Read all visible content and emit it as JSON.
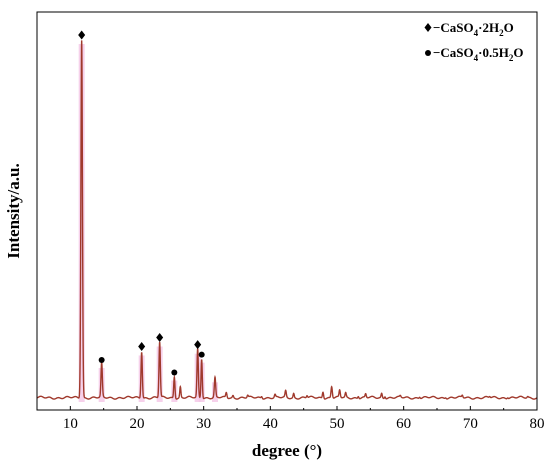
{
  "chart_data": {
    "type": "line",
    "xlabel": "degree (°)",
    "ylabel": "Intensity/a.u.",
    "xlim": [
      5,
      80
    ],
    "ylim": [
      0,
      1.0
    ],
    "x_ticks": [
      10,
      20,
      30,
      40,
      50,
      60,
      70,
      80
    ],
    "y_ticks_shown": false,
    "grid": false,
    "legend_position": "top-right",
    "colors": {
      "line": "#a0392c",
      "shade": "#f4c6e6",
      "axis": "#000000"
    },
    "legend": [
      {
        "marker": "diamond",
        "label": "−CaSO",
        "sub1": "4",
        "mid": "·2H",
        "sub2": "2",
        "tail": "O"
      },
      {
        "marker": "circle",
        "label": "−CaSO",
        "sub1": "4",
        "mid": "·0.5H",
        "sub2": "2",
        "tail": "O"
      }
    ],
    "baseline": 0.012,
    "peaks": [
      {
        "x": 11.7,
        "y": 1.0,
        "marker": "diamond",
        "w": 0.16
      },
      {
        "x": 14.7,
        "y": 0.095,
        "marker": "circle",
        "w": 0.14
      },
      {
        "x": 20.7,
        "y": 0.13,
        "marker": "diamond",
        "w": 0.14
      },
      {
        "x": 23.4,
        "y": 0.155,
        "marker": "diamond",
        "w": 0.14
      },
      {
        "x": 25.6,
        "y": 0.06,
        "marker": "circle",
        "w": 0.13
      },
      {
        "x": 26.5,
        "y": 0.03,
        "marker": null,
        "w": 0.12
      },
      {
        "x": 29.1,
        "y": 0.135,
        "marker": "diamond",
        "w": 0.14
      },
      {
        "x": 29.7,
        "y": 0.11,
        "marker": "circle",
        "w": 0.13
      },
      {
        "x": 31.7,
        "y": 0.055,
        "marker": null,
        "w": 0.14
      },
      {
        "x": 33.4,
        "y": 0.014,
        "marker": null,
        "w": 0.13
      },
      {
        "x": 34.4,
        "y": 0.006,
        "marker": null,
        "w": 0.12
      },
      {
        "x": 36.6,
        "y": 0.006,
        "marker": null,
        "w": 0.12
      },
      {
        "x": 38.7,
        "y": 0.005,
        "marker": null,
        "w": 0.12
      },
      {
        "x": 40.7,
        "y": 0.008,
        "marker": null,
        "w": 0.12
      },
      {
        "x": 42.3,
        "y": 0.018,
        "marker": null,
        "w": 0.13
      },
      {
        "x": 43.5,
        "y": 0.012,
        "marker": null,
        "w": 0.12
      },
      {
        "x": 45.5,
        "y": 0.006,
        "marker": null,
        "w": 0.12
      },
      {
        "x": 47.9,
        "y": 0.018,
        "marker": null,
        "w": 0.13
      },
      {
        "x": 49.2,
        "y": 0.032,
        "marker": null,
        "w": 0.14
      },
      {
        "x": 50.4,
        "y": 0.02,
        "marker": null,
        "w": 0.13
      },
      {
        "x": 51.3,
        "y": 0.012,
        "marker": null,
        "w": 0.12
      },
      {
        "x": 53.2,
        "y": 0.006,
        "marker": null,
        "w": 0.12
      },
      {
        "x": 54.3,
        "y": 0.01,
        "marker": null,
        "w": 0.12
      },
      {
        "x": 56.7,
        "y": 0.012,
        "marker": null,
        "w": 0.12
      },
      {
        "x": 57.2,
        "y": 0.006,
        "marker": null,
        "w": 0.12
      },
      {
        "x": 59.5,
        "y": 0.004,
        "marker": null,
        "w": 0.12
      },
      {
        "x": 62.4,
        "y": 0.004,
        "marker": null,
        "w": 0.12
      },
      {
        "x": 66.3,
        "y": 0.003,
        "marker": null,
        "w": 0.12
      },
      {
        "x": 68.8,
        "y": 0.006,
        "marker": null,
        "w": 0.12
      },
      {
        "x": 72.9,
        "y": 0.003,
        "marker": null,
        "w": 0.12
      },
      {
        "x": 75.6,
        "y": 0.003,
        "marker": null,
        "w": 0.12
      },
      {
        "x": 78.6,
        "y": 0.003,
        "marker": null,
        "w": 0.12
      }
    ]
  }
}
